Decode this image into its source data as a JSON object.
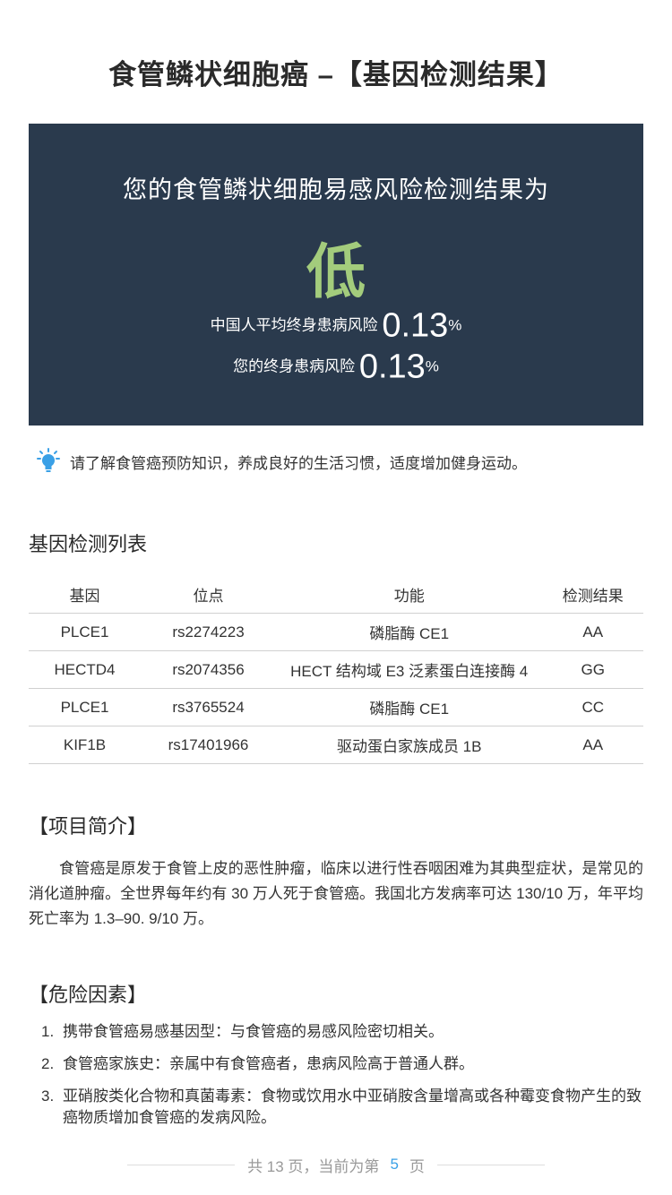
{
  "page": {
    "title": "食管鳞状细胞癌 –【基因检测结果】"
  },
  "result": {
    "headline": "您的食管鳞状细胞易感风险检测结果为",
    "level": "低",
    "level_color": "#a3cc7c",
    "card_color": "#2a3a4d",
    "cn_risk_label": "中国人平均终身患病风险",
    "cn_risk_value": "0.13",
    "self_risk_label": "您的终身患病风险",
    "self_risk_value": "0.13",
    "percent": "%"
  },
  "tip": {
    "icon": "lightbulb-icon",
    "text": "请了解食管癌预防知识，养成良好的生活习惯，适度增加健身运动。"
  },
  "gene_section": {
    "title": "基因检测列表",
    "headers": [
      "基因",
      "位点",
      "功能",
      "检测结果"
    ],
    "rows": [
      [
        "PLCE1",
        "rs2274223",
        "磷脂酶 CE1",
        "AA"
      ],
      [
        "HECTD4",
        "rs2074356",
        "HECT 结构域 E3 泛素蛋白连接酶 4",
        "GG"
      ],
      [
        "PLCE1",
        "rs3765524",
        "磷脂酶 CE1",
        "CC"
      ],
      [
        "KIF1B",
        "rs17401966",
        "驱动蛋白家族成员 1B",
        "AA"
      ]
    ]
  },
  "intro": {
    "title": "【项目简介】",
    "text": "食管癌是原发于食管上皮的恶性肿瘤，临床以进行性吞咽困难为其典型症状，是常见的消化道肿瘤。全世界每年约有 30 万人死于食管癌。我国北方发病率可达 130/10 万，年平均死亡率为 1.3–90. 9/10 万。"
  },
  "risk_factors": {
    "title": "【危险因素】",
    "items": [
      "携带食管癌易感基因型：与食管癌的易感风险密切相关。",
      "食管癌家族史：亲属中有食管癌者，患病风险高于普通人群。",
      "亚硝胺类化合物和真菌毒素：食物或饮用水中亚硝胺含量增高或各种霉变食物产生的致癌物质增加食管癌的发病风险。"
    ]
  },
  "footer": {
    "prefix": "共 13 页，当前为第",
    "current": "5",
    "suffix": "页",
    "current_color": "#3aa0e6"
  }
}
